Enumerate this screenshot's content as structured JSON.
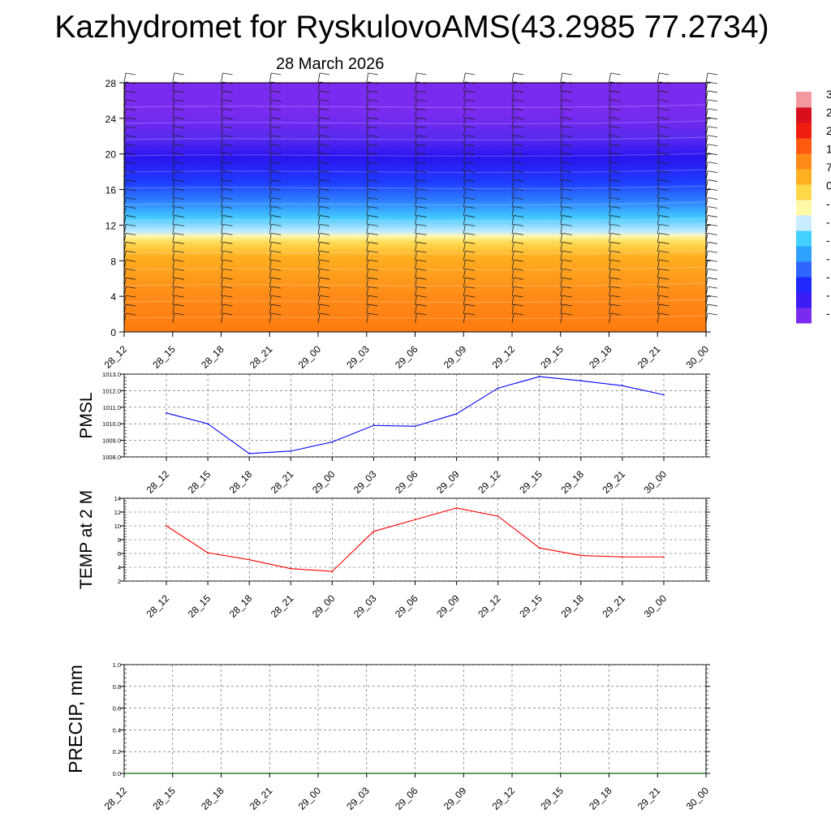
{
  "header": {
    "title": "Kazhydromet for RyskulovoAMS(43.2985 77.2734)",
    "subtitle": "28 March 2026"
  },
  "time_labels": [
    "28_12",
    "28_15",
    "28_18",
    "28_21",
    "29_00",
    "29_03",
    "29_06",
    "29_09",
    "29_12",
    "29_15",
    "29_18",
    "29_21",
    "30_00"
  ],
  "colors": {
    "pmsl_line": "#0000ff",
    "temp_line": "#ff0000",
    "precip_line": "#006400",
    "colorbar": [
      "#7b2af0",
      "#3a1cf5",
      "#1e28ff",
      "#2e66ff",
      "#2fa2ff",
      "#42d0ff",
      "#c9ecff",
      "#fff9a8",
      "#ffd84a",
      "#ffb020",
      "#ff8a18",
      "#ff5a10",
      "#f01c10",
      "#d8101e",
      "#f39aa0"
    ]
  },
  "chart_data": [
    {
      "type": "heatmap",
      "name": "cross-section",
      "yticks": [
        0,
        4,
        8,
        12,
        16,
        20,
        24,
        28
      ],
      "ylim": [
        0,
        28
      ],
      "x": [
        "28_12",
        "28_15",
        "28_18",
        "28_21",
        "29_00",
        "29_03",
        "29_06",
        "29_09",
        "29_12",
        "29_15",
        "29_18",
        "29_21",
        "30_00"
      ],
      "colorbar_visible_labels": [
        "3",
        "2",
        "2",
        "1",
        "7",
        "0",
        "-",
        "-",
        "-",
        "-",
        "-",
        "-",
        "-"
      ],
      "grid": false
    },
    {
      "type": "line",
      "ylabel": "PMSL",
      "ylim": [
        1008.0,
        1013.0
      ],
      "yticks": [
        "1008.0",
        "1009.0",
        "1010.0",
        "1011.0",
        "1012.0",
        "1013.0"
      ],
      "categories": [
        "28_12",
        "28_15",
        "28_18",
        "28_21",
        "29_00",
        "29_03",
        "29_06",
        "29_09",
        "29_12",
        "29_15",
        "29_18",
        "29_21",
        "30_00"
      ],
      "values": [
        1010.65,
        1010.0,
        1008.2,
        1008.35,
        1008.9,
        1009.9,
        1009.85,
        1010.6,
        1012.15,
        1012.85,
        1012.6,
        1012.3,
        1011.75
      ],
      "grid": true
    },
    {
      "type": "line",
      "ylabel": "TEMP at 2 M",
      "ylim": [
        2,
        14
      ],
      "yticks": [
        "2",
        "4",
        "6",
        "8",
        "10",
        "12",
        "14"
      ],
      "categories": [
        "28_12",
        "28_15",
        "28_18",
        "28_21",
        "29_00",
        "29_03",
        "29_06",
        "29_09",
        "29_12",
        "29_15",
        "29_18",
        "29_21",
        "30_00"
      ],
      "values": [
        10.0,
        6.1,
        5.1,
        3.8,
        3.4,
        9.2,
        10.9,
        12.6,
        11.4,
        6.8,
        5.7,
        5.5,
        5.5
      ],
      "grid": true
    },
    {
      "type": "line",
      "ylabel": "PRECIP, mm",
      "ylim": [
        0.0,
        1.0
      ],
      "yticks": [
        "0.0",
        "0.2",
        "0.4",
        "0.6",
        "0.8",
        "1.0"
      ],
      "categories": [
        "28_12",
        "28_15",
        "28_18",
        "28_21",
        "29_00",
        "29_03",
        "29_06",
        "29_09",
        "29_12",
        "29_15",
        "29_18",
        "29_21",
        "30_00"
      ],
      "values": [
        0,
        0,
        0,
        0,
        0,
        0,
        0,
        0,
        0,
        0,
        0,
        0,
        0
      ],
      "grid": true
    }
  ]
}
